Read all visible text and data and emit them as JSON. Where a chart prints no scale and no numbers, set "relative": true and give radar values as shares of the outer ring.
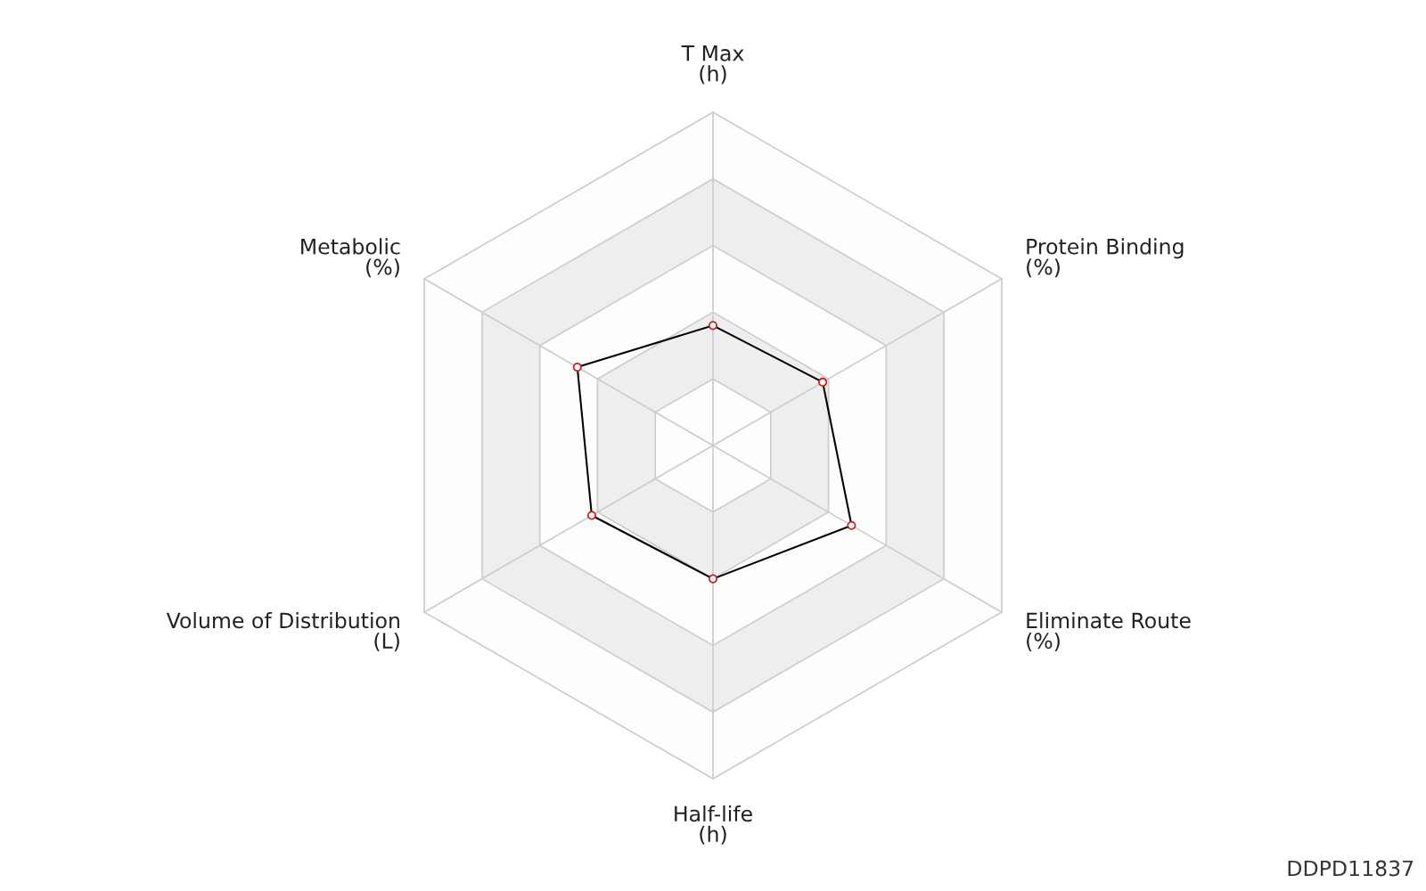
{
  "chart_data": {
    "type": "radar",
    "relative": true,
    "grid": true,
    "marker": "circle",
    "line_style": "solid",
    "categories": [
      "T Max\n(h)",
      "Protein Binding\n(%)",
      "Eliminate Route\n(%)",
      "Half-life\n(h)",
      "Volume of Distribution\n(L)",
      "Metabolic\n(%)"
    ],
    "series": [
      {
        "color": "#000000",
        "values": [
          0.36,
          0.38,
          0.48,
          0.4,
          0.42,
          0.47
        ]
      }
    ],
    "annotations": [
      "DDPD11837"
    ]
  }
}
